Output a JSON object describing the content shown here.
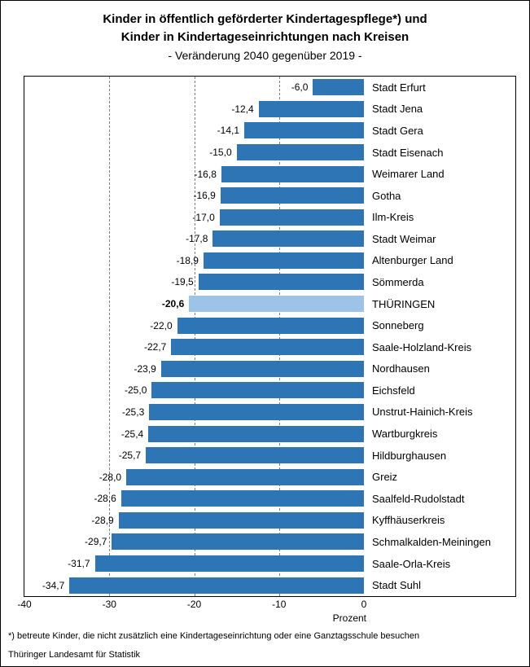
{
  "title": {
    "line1": "Kinder in öffentlich geförderter Kindertagespflege*) und",
    "line2": "Kinder in Kindertageseinrichtungen nach Kreisen",
    "subtitle": "- Veränderung 2040 gegenüber 2019 -"
  },
  "chart_data": {
    "type": "bar",
    "orientation": "horizontal",
    "title": "Kinder in öffentlich geförderter Kindertagespflege und Kinder in Kindertageseinrichtungen nach Kreisen - Veränderung 2040 gegenüber 2019",
    "xlabel": "Prozent",
    "xlim": [
      -40,
      0
    ],
    "xticks": [
      -40,
      -30,
      -20,
      -10,
      0
    ],
    "xtick_labels": [
      "-40",
      "-30",
      "-20",
      "-10",
      "0"
    ],
    "grid_x": [
      -30,
      -20,
      -10
    ],
    "grid_style": "dashed-vertical",
    "bar_color": "#2e75b6",
    "highlight_color": "#9dc3e6",
    "highlight_category": "THÜRINGEN",
    "categories": [
      "Stadt Erfurt",
      "Stadt Jena",
      "Stadt Gera",
      "Stadt Eisenach",
      "Weimarer Land",
      "Gotha",
      "Ilm-Kreis",
      "Stadt Weimar",
      "Altenburger Land",
      "Sömmerda",
      "THÜRINGEN",
      "Sonneberg",
      "Saale-Holzland-Kreis",
      "Nordhausen",
      "Eichsfeld",
      "Unstrut-Hainich-Kreis",
      "Wartburgkreis",
      "Hildburghausen",
      "Greiz",
      "Saalfeld-Rudolstadt",
      "Kyffhäuserkreis",
      "Schmalkalden-Meiningen",
      "Saale-Orla-Kreis",
      "Stadt Suhl"
    ],
    "values": [
      -6.0,
      -12.4,
      -14.1,
      -15.0,
      -16.8,
      -16.9,
      -17.0,
      -17.8,
      -18.9,
      -19.5,
      -20.6,
      -22.0,
      -22.7,
      -23.9,
      -25.0,
      -25.3,
      -25.4,
      -25.7,
      -28.0,
      -28.6,
      -28.9,
      -29.7,
      -31.7,
      -34.7
    ],
    "value_labels": [
      "-6,0",
      "-12,4",
      "-14,1",
      "-15,0",
      "-16,8",
      "-16,9",
      "-17,0",
      "-17,8",
      "-18,9",
      "-19,5",
      "-20,6",
      "-22,0",
      "-22,7",
      "-23,9",
      "-25,0",
      "-25,3",
      "-25,4",
      "-25,7",
      "-28,0",
      "-28,6",
      "-28,9",
      "-29,7",
      "-31,7",
      "-34,7"
    ]
  },
  "footnote": "*) betreute Kinder, die nicht zusätzlich eine Kindertageseinrichtung oder eine Ganztagsschule besuchen",
  "source": "Thüringer Landesamt für Statistik"
}
